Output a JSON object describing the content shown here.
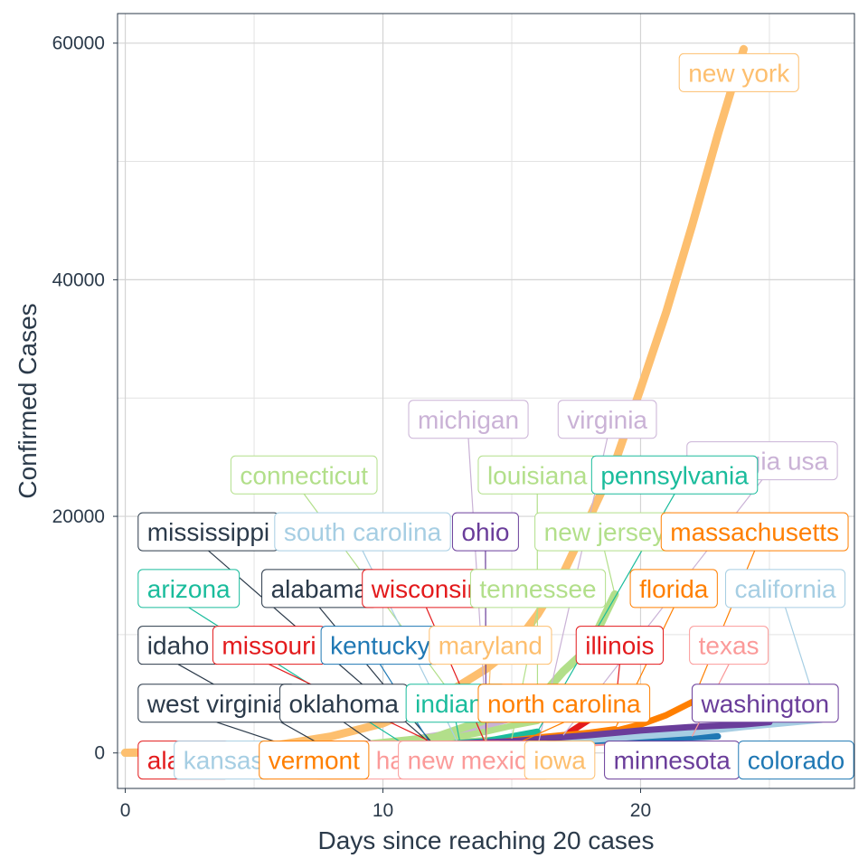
{
  "chart_data": {
    "type": "line",
    "xlabel": "Days since reaching 20 cases",
    "ylabel": "Confirmed Cases",
    "xlim": [
      -0.3,
      28.3
    ],
    "ylim": [
      -3000,
      62500
    ],
    "x_ticks": [
      0,
      10,
      20
    ],
    "y_ticks": [
      0,
      20000,
      40000,
      60000
    ],
    "grid": true,
    "legend": "none",
    "series": [
      {
        "name": "new york",
        "color": "#fdbf6f",
        "x": [
          0,
          2,
          4,
          6,
          8,
          10,
          12,
          14,
          15,
          16,
          17,
          18,
          19,
          20,
          21,
          22,
          23,
          24
        ],
        "y": [
          20,
          105,
          300,
          700,
          1400,
          2500,
          4400,
          7100,
          8800,
          11700,
          15200,
          19800,
          24500,
          30800,
          37300,
          44600,
          52300,
          59500
        ]
      },
      {
        "name": "new jersey",
        "color": "#b2df8a",
        "x": [
          0,
          4,
          8,
          12,
          14,
          16,
          17,
          18,
          19
        ],
        "y": [
          20,
          90,
          400,
          1300,
          2800,
          4400,
          6900,
          8900,
          13400
        ]
      },
      {
        "name": "washington",
        "color": "#6a3d9a",
        "x": [
          0,
          5,
          10,
          15,
          18,
          20,
          22,
          24,
          25
        ],
        "y": [
          20,
          150,
          500,
          1000,
          1500,
          1900,
          2200,
          2400,
          2600
        ]
      },
      {
        "name": "california",
        "color": "#a6cee3",
        "x": [
          0,
          5,
          10,
          15,
          18,
          20,
          22,
          24,
          27
        ],
        "y": [
          20,
          100,
          250,
          700,
          1100,
          1400,
          1700,
          2200,
          2800
        ]
      },
      {
        "name": "louisiana",
        "color": "#b2df8a",
        "x": [
          0,
          5,
          10,
          13,
          14,
          15,
          16
        ],
        "y": [
          20,
          200,
          600,
          1400,
          1800,
          2300,
          2700
        ]
      },
      {
        "name": "michigan",
        "color": "#cab2d6",
        "x": [
          0,
          5,
          10,
          13,
          14,
          15
        ],
        "y": [
          20,
          300,
          800,
          1800,
          2300,
          2900
        ]
      },
      {
        "name": "massachusetts",
        "color": "#ff7f00",
        "x": [
          0,
          5,
          10,
          15,
          18,
          20,
          21,
          22
        ],
        "y": [
          20,
          120,
          300,
          700,
          1300,
          2400,
          3200,
          4300
        ]
      },
      {
        "name": "florida",
        "color": "#ff7f00",
        "x": [
          0,
          5,
          10,
          14,
          16,
          18,
          19
        ],
        "y": [
          20,
          100,
          300,
          800,
          1300,
          1700,
          2000
        ]
      },
      {
        "name": "illinois",
        "color": "#e31a1c",
        "x": [
          0,
          5,
          10,
          15,
          17,
          18,
          19
        ],
        "y": [
          20,
          150,
          400,
          900,
          1400,
          2800,
          3500
        ]
      },
      {
        "name": "georgia usa",
        "color": "#cab2d6",
        "x": [
          0,
          5,
          10,
          15,
          17
        ],
        "y": [
          20,
          150,
          400,
          1000,
          1500
        ]
      },
      {
        "name": "pennsylvania",
        "color": "#1abc9c",
        "x": [
          0,
          5,
          10,
          14,
          16
        ],
        "y": [
          20,
          150,
          400,
          1000,
          1800
        ]
      },
      {
        "name": "connecticut",
        "color": "#b2df8a",
        "x": [
          0,
          5,
          10,
          13,
          14
        ],
        "y": [
          20,
          150,
          400,
          800,
          1000
        ]
      },
      {
        "name": "colorado",
        "color": "#1f78b4",
        "x": [
          0,
          10,
          18,
          23
        ],
        "y": [
          20,
          400,
          1000,
          1400
        ]
      },
      {
        "name": "texas",
        "color": "#fb9a99",
        "x": [
          0,
          8,
          14,
          18,
          22
        ],
        "y": [
          20,
          150,
          500,
          800,
          1400
        ]
      },
      {
        "name": "tennessee",
        "color": "#b2df8a",
        "x": [
          0,
          6,
          10,
          15
        ],
        "y": [
          20,
          200,
          600,
          1200
        ]
      },
      {
        "name": "ohio",
        "color": "#6a3d9a",
        "x": [
          0,
          6,
          10,
          14
        ],
        "y": [
          20,
          200,
          500,
          900
        ]
      },
      {
        "name": "wisconsin",
        "color": "#e31a1c",
        "x": [
          0,
          6,
          10,
          14
        ],
        "y": [
          20,
          150,
          400,
          700
        ]
      },
      {
        "name": "indiana",
        "color": "#1abc9c",
        "x": [
          0,
          5,
          9,
          13
        ],
        "y": [
          20,
          150,
          400,
          800
        ]
      },
      {
        "name": "maryland",
        "color": "#fdbf6f",
        "x": [
          0,
          5,
          10,
          14
        ],
        "y": [
          20,
          100,
          300,
          600
        ]
      },
      {
        "name": "north carolina",
        "color": "#ff7f00",
        "x": [
          0,
          6,
          10,
          15
        ],
        "y": [
          20,
          100,
          300,
          600
        ]
      },
      {
        "name": "virginia",
        "color": "#cab2d6",
        "x": [
          0,
          6,
          10,
          16
        ],
        "y": [
          20,
          80,
          250,
          500
        ]
      },
      {
        "name": "minnesota",
        "color": "#6a3d9a",
        "x": [
          0,
          6,
          12,
          18
        ],
        "y": [
          20,
          80,
          200,
          350
        ]
      },
      {
        "name": "iowa",
        "color": "#fdbf6f",
        "x": [
          0,
          6,
          12,
          15
        ],
        "y": [
          20,
          60,
          150,
          200
        ]
      },
      {
        "name": "south carolina",
        "color": "#a6cee3",
        "x": [
          0,
          5,
          10,
          13
        ],
        "y": [
          20,
          100,
          300,
          450
        ]
      },
      {
        "name": "missouri",
        "color": "#e31a1c",
        "x": [
          0,
          4,
          8,
          12
        ],
        "y": [
          20,
          80,
          300,
          800
        ]
      },
      {
        "name": "kentucky",
        "color": "#1f78b4",
        "x": [
          0,
          5,
          10,
          12
        ],
        "y": [
          20,
          80,
          200,
          250
        ]
      },
      {
        "name": "alabama",
        "color": "#2b3a4a",
        "x": [
          0,
          5,
          9,
          12
        ],
        "y": [
          20,
          100,
          400,
          600
        ]
      },
      {
        "name": "arizona",
        "color": "#1abc9c",
        "x": [
          0,
          4,
          8,
          11
        ],
        "y": [
          20,
          100,
          300,
          500
        ]
      },
      {
        "name": "mississippi",
        "color": "#2b3a4a",
        "x": [
          0,
          4,
          8,
          12
        ],
        "y": [
          20,
          100,
          300,
          500
        ]
      },
      {
        "name": "oklahoma",
        "color": "#2b3a4a",
        "x": [
          0,
          4,
          8,
          10
        ],
        "y": [
          20,
          60,
          200,
          300
        ]
      },
      {
        "name": "idaho",
        "color": "#2b3a4a",
        "x": [
          0,
          3,
          6,
          8
        ],
        "y": [
          20,
          60,
          150,
          200
        ]
      },
      {
        "name": "west virginia",
        "color": "#2b3a4a",
        "x": [
          0,
          3,
          5,
          7
        ],
        "y": [
          20,
          50,
          80,
          100
        ]
      },
      {
        "name": "kansas",
        "color": "#a6cee3",
        "x": [
          0,
          4,
          8,
          11
        ],
        "y": [
          20,
          60,
          150,
          300
        ]
      },
      {
        "name": "vermont",
        "color": "#ff7f00",
        "x": [
          0,
          4,
          8,
          10
        ],
        "y": [
          20,
          60,
          150,
          200
        ]
      },
      {
        "name": "new mexico",
        "color": "#fb9a99",
        "x": [
          0,
          4,
          8,
          12
        ],
        "y": [
          20,
          60,
          150,
          250
        ]
      },
      {
        "name": "new hampshire",
        "color": "#fb9a99",
        "x": [
          0,
          4,
          8,
          11
        ],
        "y": [
          20,
          50,
          120,
          200
        ]
      },
      {
        "name": "alaska",
        "color": "#e31a1c",
        "x": [
          0,
          3,
          6,
          8
        ],
        "y": [
          20,
          40,
          60,
          80
        ]
      }
    ],
    "annotations": [
      {
        "text": "new york",
        "color": "#fdbf6f",
        "dark": false,
        "ax": 21.5,
        "ay": 57500
      },
      {
        "text": "michigan",
        "color": "#cab2d6",
        "dark": false,
        "ax": 11,
        "ay": 28200,
        "tx": 14,
        "ty": 2700
      },
      {
        "text": "virginia",
        "color": "#cab2d6",
        "dark": false,
        "ax": 16.8,
        "ay": 28200,
        "tx": 16,
        "ty": 500
      },
      {
        "text": "georgia usa",
        "color": "#cab2d6",
        "dark": false,
        "ax": 21.8,
        "ay": 24700,
        "tx": 17,
        "ty": 1500
      },
      {
        "text": "connecticut",
        "color": "#b2df8a",
        "dark": false,
        "ax": 4.1,
        "ay": 23500,
        "tx": 14,
        "ty": 1000
      },
      {
        "text": "louisiana",
        "color": "#b2df8a",
        "dark": false,
        "ax": 13.7,
        "ay": 23500,
        "tx": 16,
        "ty": 2700
      },
      {
        "text": "pennsylvania",
        "color": "#1abc9c",
        "dark": false,
        "ax": 18.1,
        "ay": 23500,
        "tx": 16,
        "ty": 1800
      },
      {
        "text": "mississippi",
        "color": "#2b3a4a",
        "dark": true,
        "ax": 0.5,
        "ay": 18700,
        "tx": 12,
        "ty": 500
      },
      {
        "text": "south carolina",
        "color": "#a6cee3",
        "dark": false,
        "ax": 5.8,
        "ay": 18700,
        "tx": 13,
        "ty": 450
      },
      {
        "text": "ohio",
        "color": "#6a3d9a",
        "dark": false,
        "ax": 12.7,
        "ay": 18700,
        "tx": 14,
        "ty": 900
      },
      {
        "text": "new jersey",
        "color": "#b2df8a",
        "dark": false,
        "ax": 15.9,
        "ay": 18700,
        "tx": 19,
        "ty": 13400
      },
      {
        "text": "massachusetts",
        "color": "#ff7f00",
        "dark": false,
        "ax": 20.8,
        "ay": 18700,
        "tx": 22,
        "ty": 4300
      },
      {
        "text": "arizona",
        "color": "#1abc9c",
        "dark": false,
        "ax": 0.5,
        "ay": 13900,
        "tx": 11,
        "ty": 500
      },
      {
        "text": "alabama",
        "color": "#2b3a4a",
        "dark": true,
        "ax": 5.3,
        "ay": 13900,
        "tx": 12,
        "ty": 600
      },
      {
        "text": "wisconsin",
        "color": "#e31a1c",
        "dark": false,
        "ax": 9.2,
        "ay": 13900,
        "tx": 14,
        "ty": 700
      },
      {
        "text": "tennessee",
        "color": "#b2df8a",
        "dark": false,
        "ax": 13.4,
        "ay": 13900,
        "tx": 15,
        "ty": 1200
      },
      {
        "text": "florida",
        "color": "#ff7f00",
        "dark": false,
        "ax": 19.6,
        "ay": 13900,
        "tx": 19,
        "ty": 2000
      },
      {
        "text": "california",
        "color": "#a6cee3",
        "dark": false,
        "ax": 23.3,
        "ay": 13900,
        "tx": 27,
        "ty": 2800
      },
      {
        "text": "idaho",
        "color": "#2b3a4a",
        "dark": true,
        "ax": 0.5,
        "ay": 9100,
        "tx": 8,
        "ty": 200
      },
      {
        "text": "missouri",
        "color": "#e31a1c",
        "dark": false,
        "ax": 3.4,
        "ay": 9100,
        "tx": 12,
        "ty": 800
      },
      {
        "text": "kentucky",
        "color": "#1f78b4",
        "dark": false,
        "ax": 7.6,
        "ay": 9100,
        "tx": 12,
        "ty": 250
      },
      {
        "text": "maryland",
        "color": "#fdbf6f",
        "dark": false,
        "ax": 11.8,
        "ay": 9100,
        "tx": 14,
        "ty": 600
      },
      {
        "text": "illinois",
        "color": "#e31a1c",
        "dark": false,
        "ax": 17.5,
        "ay": 9100,
        "tx": 19,
        "ty": 3500
      },
      {
        "text": "texas",
        "color": "#fb9a99",
        "dark": false,
        "ax": 21.9,
        "ay": 9100,
        "tx": 22,
        "ty": 1400
      },
      {
        "text": "west virginia",
        "color": "#2b3a4a",
        "dark": true,
        "ax": 0.5,
        "ay": 4200,
        "tx": 7,
        "ty": 100
      },
      {
        "text": "oklahoma",
        "color": "#2b3a4a",
        "dark": true,
        "ax": 6.0,
        "ay": 4200,
        "tx": 10,
        "ty": 300
      },
      {
        "text": "indiana",
        "color": "#1abc9c",
        "dark": false,
        "ax": 10.9,
        "ay": 4200,
        "tx": 13,
        "ty": 800
      },
      {
        "text": "north carolina",
        "color": "#ff7f00",
        "dark": false,
        "ax": 13.7,
        "ay": 4200,
        "tx": 15,
        "ty": 600
      },
      {
        "text": "washington",
        "color": "#6a3d9a",
        "dark": false,
        "ax": 22.0,
        "ay": 4200,
        "tx": 25,
        "ty": 2600
      },
      {
        "text": "alaska",
        "color": "#e31a1c",
        "dark": false,
        "ax": 0.5,
        "ay": -600
      },
      {
        "text": "kansas",
        "color": "#a6cee3",
        "dark": false,
        "ax": 1.9,
        "ay": -600
      },
      {
        "text": "new hampshire",
        "color": "#fb9a99",
        "dark": false,
        "ax": 7.3,
        "ay": -600
      },
      {
        "text": "vermont",
        "color": "#ff7f00",
        "dark": false,
        "ax": 5.2,
        "ay": -600
      },
      {
        "text": "new mexico",
        "color": "#fb9a99",
        "dark": false,
        "ax": 10.6,
        "ay": -600
      },
      {
        "text": "iowa",
        "color": "#fdbf6f",
        "dark": false,
        "ax": 15.5,
        "ay": -600
      },
      {
        "text": "minnesota",
        "color": "#6a3d9a",
        "dark": false,
        "ax": 18.6,
        "ay": -600
      },
      {
        "text": "colorado",
        "color": "#1f78b4",
        "dark": false,
        "ax": 23.8,
        "ay": -600
      }
    ]
  }
}
